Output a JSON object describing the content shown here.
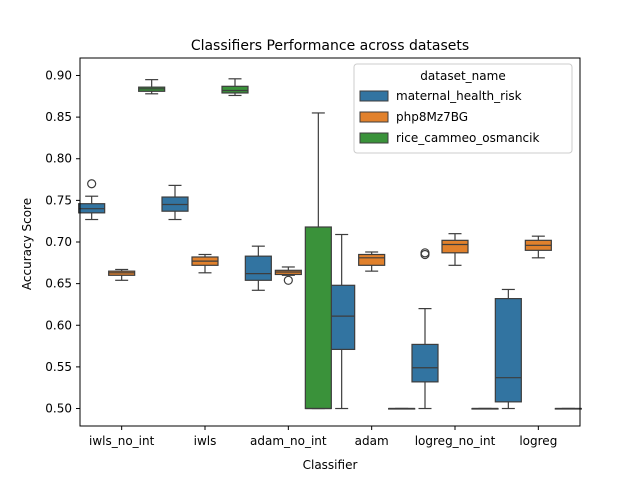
{
  "chart_data": {
    "type": "boxplot",
    "title": "Classifiers Performance across datasets",
    "xlabel": "Classifier",
    "ylabel": "Accuracy Score",
    "ylim": [
      0.479,
      0.921
    ],
    "yticks": [
      "0.50",
      "0.55",
      "0.60",
      "0.65",
      "0.70",
      "0.75",
      "0.80",
      "0.85",
      "0.90"
    ],
    "categories": [
      "iwls_no_int",
      "iwls",
      "adam_no_int",
      "adam",
      "logreg_no_int",
      "logreg"
    ],
    "grid": false,
    "legend": {
      "title": "dataset_name",
      "placement": "upper-right"
    },
    "series": [
      {
        "name": "maternal_health_risk",
        "color": "#3274a1",
        "boxes": [
          {
            "whislo": 0.727,
            "q1": 0.735,
            "med": 0.74,
            "q3": 0.746,
            "whishi": 0.755,
            "fliers": [
              0.77
            ]
          },
          {
            "whislo": 0.727,
            "q1": 0.737,
            "med": 0.745,
            "q3": 0.754,
            "whishi": 0.768,
            "fliers": []
          },
          {
            "whislo": 0.642,
            "q1": 0.654,
            "med": 0.662,
            "q3": 0.683,
            "whishi": 0.695,
            "fliers": []
          },
          {
            "whislo": 0.5,
            "q1": 0.571,
            "med": 0.611,
            "q3": 0.648,
            "whishi": 0.709,
            "fliers": []
          },
          {
            "whislo": 0.5,
            "q1": 0.532,
            "med": 0.549,
            "q3": 0.577,
            "whishi": 0.62,
            "fliers": [
              0.685,
              0.687
            ]
          },
          {
            "whislo": 0.5,
            "q1": 0.508,
            "med": 0.537,
            "q3": 0.632,
            "whishi": 0.643,
            "fliers": []
          }
        ]
      },
      {
        "name": "php8Mz7BG",
        "color": "#e1812c",
        "boxes": [
          {
            "whislo": 0.654,
            "q1": 0.66,
            "med": 0.663,
            "q3": 0.665,
            "whishi": 0.667,
            "fliers": []
          },
          {
            "whislo": 0.663,
            "q1": 0.672,
            "med": 0.677,
            "q3": 0.682,
            "whishi": 0.685,
            "fliers": []
          },
          {
            "whislo": 0.66,
            "q1": 0.661,
            "med": 0.664,
            "q3": 0.666,
            "whishi": 0.67,
            "fliers": [
              0.654
            ]
          },
          {
            "whislo": 0.665,
            "q1": 0.672,
            "med": 0.681,
            "q3": 0.685,
            "whishi": 0.688,
            "fliers": []
          },
          {
            "whislo": 0.672,
            "q1": 0.687,
            "med": 0.697,
            "q3": 0.702,
            "whishi": 0.71,
            "fliers": []
          },
          {
            "whislo": 0.681,
            "q1": 0.69,
            "med": 0.696,
            "q3": 0.702,
            "whishi": 0.707,
            "fliers": []
          }
        ]
      },
      {
        "name": "rice_cammeo_osmancik",
        "color": "#3a923a",
        "boxes": [
          {
            "whislo": 0.878,
            "q1": 0.881,
            "med": 0.884,
            "q3": 0.886,
            "whishi": 0.895,
            "fliers": []
          },
          {
            "whislo": 0.876,
            "q1": 0.879,
            "med": 0.882,
            "q3": 0.887,
            "whishi": 0.896,
            "fliers": []
          },
          {
            "whislo": 0.5,
            "q1": 0.5,
            "med": 0.5,
            "q3": 0.718,
            "whishi": 0.855,
            "fliers": []
          },
          {
            "whislo": 0.5,
            "q1": 0.5,
            "med": 0.5,
            "q3": 0.5,
            "whishi": 0.5,
            "fliers": []
          },
          {
            "whislo": 0.5,
            "q1": 0.5,
            "med": 0.5,
            "q3": 0.5,
            "whishi": 0.5,
            "fliers": []
          },
          {
            "whislo": 0.5,
            "q1": 0.5,
            "med": 0.5,
            "q3": 0.5,
            "whishi": 0.5,
            "fliers": []
          }
        ]
      }
    ]
  }
}
